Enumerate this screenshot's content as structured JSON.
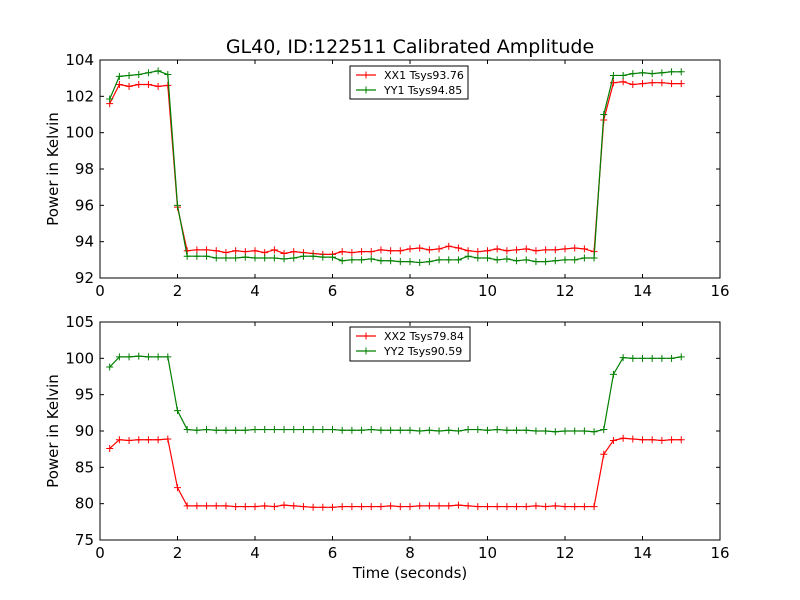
{
  "chart_data": {
    "type": "line",
    "title": "GL40, ID:122511 Calibrated Amplitude",
    "xlabel": "Time (seconds)",
    "panels": [
      {
        "ylabel": "Power in Kelvin",
        "xlim": [
          0,
          16
        ],
        "ylim": [
          92,
          104
        ],
        "xticks": [
          0,
          2,
          4,
          6,
          8,
          10,
          12,
          14,
          16
        ],
        "yticks": [
          92,
          94,
          96,
          98,
          100,
          102,
          104
        ],
        "grid": false,
        "legend_position": "upper-center",
        "x": [
          0.25,
          0.5,
          0.75,
          1.0,
          1.25,
          1.5,
          1.75,
          2.0,
          2.25,
          2.5,
          2.75,
          3.0,
          3.25,
          3.5,
          3.75,
          4.0,
          4.25,
          4.5,
          4.75,
          5.0,
          5.25,
          5.5,
          5.75,
          6.0,
          6.25,
          6.5,
          6.75,
          7.0,
          7.25,
          7.5,
          7.75,
          8.0,
          8.25,
          8.5,
          8.75,
          9.0,
          9.25,
          9.5,
          9.75,
          10.0,
          10.25,
          10.5,
          10.75,
          11.0,
          11.25,
          11.5,
          11.75,
          12.0,
          12.25,
          12.5,
          12.75,
          13.0,
          13.25,
          13.5,
          13.75,
          14.0,
          14.25,
          14.5,
          14.75,
          15.0
        ],
        "series": [
          {
            "name": "XX1 Tsys93.76",
            "color": "#ff0000",
            "values": [
              101.6,
              102.65,
              102.55,
              102.65,
              102.65,
              102.55,
              102.6,
              95.9,
              93.5,
              93.55,
              93.55,
              93.5,
              93.4,
              93.5,
              93.45,
              93.5,
              93.4,
              93.55,
              93.35,
              93.45,
              93.4,
              93.35,
              93.3,
              93.3,
              93.45,
              93.4,
              93.45,
              93.45,
              93.55,
              93.5,
              93.5,
              93.6,
              93.65,
              93.55,
              93.6,
              93.75,
              93.65,
              93.5,
              93.45,
              93.5,
              93.6,
              93.5,
              93.55,
              93.6,
              93.5,
              93.55,
              93.55,
              93.6,
              93.65,
              93.6,
              93.45,
              100.7,
              102.75,
              102.8,
              102.65,
              102.7,
              102.75,
              102.75,
              102.7,
              102.7
            ]
          },
          {
            "name": "YY1 Tsys94.85",
            "color": "#008000",
            "values": [
              101.85,
              103.1,
              103.15,
              103.2,
              103.3,
              103.4,
              103.2,
              96.0,
              93.2,
              93.2,
              93.2,
              93.1,
              93.1,
              93.1,
              93.15,
              93.1,
              93.1,
              93.1,
              93.05,
              93.1,
              93.2,
              93.2,
              93.15,
              93.15,
              92.95,
              93.0,
              93.0,
              93.05,
              92.95,
              92.95,
              92.9,
              92.9,
              92.85,
              92.9,
              93.0,
              93.0,
              93.0,
              93.2,
              93.1,
              93.1,
              93.0,
              93.05,
              92.95,
              93.0,
              92.9,
              92.9,
              92.95,
              93.0,
              93.0,
              93.1,
              93.1,
              101.0,
              103.15,
              103.15,
              103.25,
              103.3,
              103.25,
              103.3,
              103.35,
              103.35
            ]
          }
        ]
      },
      {
        "ylabel": "Power in Kelvin",
        "xlim": [
          0,
          16
        ],
        "ylim": [
          75,
          105
        ],
        "xticks": [
          0,
          2,
          4,
          6,
          8,
          10,
          12,
          14,
          16
        ],
        "yticks": [
          75,
          80,
          85,
          90,
          95,
          100,
          105
        ],
        "grid": false,
        "legend_position": "upper-center",
        "x": [
          0.25,
          0.5,
          0.75,
          1.0,
          1.25,
          1.5,
          1.75,
          2.0,
          2.25,
          2.5,
          2.75,
          3.0,
          3.25,
          3.5,
          3.75,
          4.0,
          4.25,
          4.5,
          4.75,
          5.0,
          5.25,
          5.5,
          5.75,
          6.0,
          6.25,
          6.5,
          6.75,
          7.0,
          7.25,
          7.5,
          7.75,
          8.0,
          8.25,
          8.5,
          8.75,
          9.0,
          9.25,
          9.5,
          9.75,
          10.0,
          10.25,
          10.5,
          10.75,
          11.0,
          11.25,
          11.5,
          11.75,
          12.0,
          12.25,
          12.5,
          12.75,
          13.0,
          13.25,
          13.5,
          13.75,
          14.0,
          14.25,
          14.5,
          14.75,
          15.0
        ],
        "series": [
          {
            "name": "XX2 Tsys79.84",
            "color": "#ff0000",
            "values": [
              87.6,
              88.8,
              88.7,
              88.8,
              88.8,
              88.8,
              88.9,
              82.2,
              79.7,
              79.7,
              79.7,
              79.7,
              79.7,
              79.6,
              79.6,
              79.6,
              79.7,
              79.6,
              79.8,
              79.7,
              79.6,
              79.5,
              79.5,
              79.5,
              79.6,
              79.6,
              79.6,
              79.6,
              79.6,
              79.7,
              79.6,
              79.6,
              79.7,
              79.7,
              79.7,
              79.7,
              79.8,
              79.7,
              79.6,
              79.6,
              79.6,
              79.6,
              79.6,
              79.6,
              79.7,
              79.6,
              79.7,
              79.6,
              79.6,
              79.6,
              79.6,
              86.8,
              88.7,
              89.0,
              88.9,
              88.8,
              88.8,
              88.7,
              88.8,
              88.8
            ]
          },
          {
            "name": "YY2 Tsys90.59",
            "color": "#008000",
            "values": [
              98.8,
              100.2,
              100.2,
              100.3,
              100.2,
              100.2,
              100.2,
              92.8,
              90.2,
              90.1,
              90.2,
              90.1,
              90.1,
              90.1,
              90.1,
              90.2,
              90.2,
              90.2,
              90.2,
              90.2,
              90.2,
              90.2,
              90.2,
              90.2,
              90.1,
              90.1,
              90.1,
              90.2,
              90.1,
              90.1,
              90.1,
              90.1,
              90.0,
              90.1,
              90.0,
              90.1,
              90.0,
              90.2,
              90.2,
              90.1,
              90.2,
              90.1,
              90.1,
              90.1,
              90.0,
              90.0,
              89.9,
              90.0,
              90.0,
              90.0,
              89.9,
              90.2,
              97.8,
              100.1,
              100.0,
              100.0,
              100.0,
              100.0,
              100.0,
              100.2
            ]
          }
        ]
      }
    ]
  }
}
